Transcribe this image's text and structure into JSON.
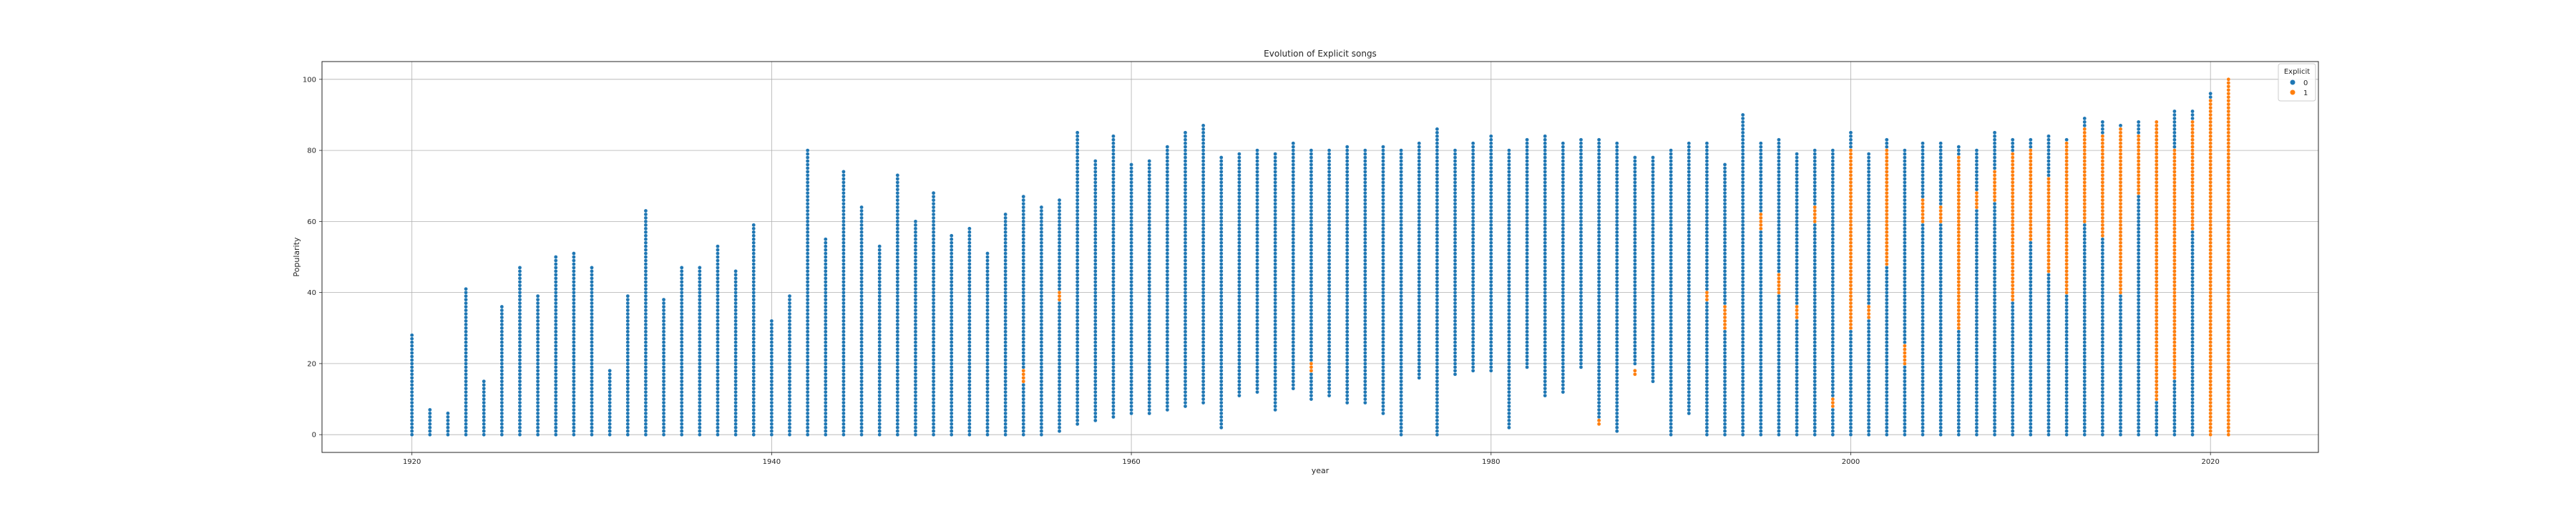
{
  "chart_data": {
    "type": "scatter",
    "title": "Evolution of Explicit songs",
    "xlabel": "year",
    "ylabel": "Popularity",
    "xlim": [
      1915,
      2026
    ],
    "ylim": [
      -5,
      105
    ],
    "xticks": [
      1920,
      1940,
      1960,
      1980,
      2000,
      2020
    ],
    "yticks": [
      0,
      20,
      40,
      60,
      80,
      100
    ],
    "grid": true,
    "legend": {
      "title": "Explicit",
      "placement": "top-right",
      "entries": [
        "0",
        "1"
      ]
    },
    "colors": {
      "0": "#1f77b4",
      "1": "#ff7f0e"
    },
    "marker": "filled circle",
    "note": "Per year, one dot per popularity value observed (values 0-100).",
    "series": [
      {
        "name": "0",
        "year_ranges": [
          [
            1920,
            0,
            28
          ],
          [
            1921,
            0,
            7
          ],
          [
            1922,
            0,
            6
          ],
          [
            1923,
            0,
            41
          ],
          [
            1924,
            0,
            15
          ],
          [
            1925,
            0,
            36
          ],
          [
            1926,
            0,
            47
          ],
          [
            1927,
            0,
            39
          ],
          [
            1928,
            0,
            50
          ],
          [
            1929,
            0,
            51
          ],
          [
            1930,
            0,
            47
          ],
          [
            1931,
            0,
            18
          ],
          [
            1932,
            0,
            39
          ],
          [
            1933,
            0,
            63
          ],
          [
            1934,
            0,
            38
          ],
          [
            1935,
            0,
            47
          ],
          [
            1936,
            0,
            47
          ],
          [
            1937,
            0,
            53
          ],
          [
            1938,
            0,
            46
          ],
          [
            1939,
            0,
            59
          ],
          [
            1940,
            0,
            32
          ],
          [
            1941,
            0,
            39
          ],
          [
            1942,
            0,
            80
          ],
          [
            1943,
            0,
            55
          ],
          [
            1944,
            0,
            74
          ],
          [
            1945,
            0,
            64
          ],
          [
            1946,
            0,
            53
          ],
          [
            1947,
            0,
            73
          ],
          [
            1948,
            0,
            60
          ],
          [
            1949,
            0,
            68
          ],
          [
            1950,
            0,
            56
          ],
          [
            1951,
            0,
            58
          ],
          [
            1952,
            0,
            51
          ],
          [
            1953,
            0,
            62
          ],
          [
            1954,
            0,
            67
          ],
          [
            1955,
            0,
            64
          ],
          [
            1956,
            1,
            66
          ],
          [
            1957,
            3,
            85
          ],
          [
            1958,
            4,
            77
          ],
          [
            1959,
            5,
            84
          ],
          [
            1960,
            6,
            76
          ],
          [
            1961,
            6,
            77
          ],
          [
            1962,
            7,
            81
          ],
          [
            1963,
            8,
            85
          ],
          [
            1964,
            9,
            87
          ],
          [
            1965,
            2,
            78
          ],
          [
            1966,
            11,
            79
          ],
          [
            1967,
            12,
            80
          ],
          [
            1968,
            7,
            79
          ],
          [
            1969,
            13,
            82
          ],
          [
            1970,
            10,
            80
          ],
          [
            1971,
            11,
            80
          ],
          [
            1972,
            9,
            81
          ],
          [
            1973,
            9,
            80
          ],
          [
            1974,
            6,
            81
          ],
          [
            1975,
            0,
            80
          ],
          [
            1976,
            16,
            82
          ],
          [
            1977,
            0,
            86
          ],
          [
            1978,
            17,
            80
          ],
          [
            1979,
            18,
            82
          ],
          [
            1980,
            18,
            84
          ],
          [
            1981,
            2,
            80
          ],
          [
            1982,
            19,
            83
          ],
          [
            1983,
            11,
            84
          ],
          [
            1984,
            12,
            82
          ],
          [
            1985,
            19,
            83
          ],
          [
            1986,
            4,
            83
          ],
          [
            1987,
            1,
            82
          ],
          [
            1988,
            20,
            78
          ],
          [
            1989,
            15,
            78
          ],
          [
            1990,
            0,
            80
          ],
          [
            1991,
            6,
            82
          ],
          [
            1992,
            0,
            82
          ],
          [
            1993,
            0,
            76
          ],
          [
            1994,
            0,
            90
          ],
          [
            1995,
            0,
            82
          ],
          [
            1996,
            0,
            83
          ],
          [
            1997,
            0,
            79
          ],
          [
            1998,
            0,
            80
          ],
          [
            1999,
            0,
            80
          ],
          [
            2000,
            0,
            85
          ],
          [
            2001,
            0,
            79
          ],
          [
            2002,
            0,
            83
          ],
          [
            2003,
            0,
            80
          ],
          [
            2004,
            0,
            82
          ],
          [
            2005,
            0,
            82
          ],
          [
            2006,
            0,
            81
          ],
          [
            2007,
            0,
            80
          ],
          [
            2008,
            0,
            85
          ],
          [
            2009,
            0,
            83
          ],
          [
            2010,
            0,
            83
          ],
          [
            2011,
            0,
            84
          ],
          [
            2012,
            0,
            83
          ],
          [
            2013,
            0,
            89
          ],
          [
            2014,
            0,
            88
          ],
          [
            2015,
            0,
            87
          ],
          [
            2016,
            0,
            88
          ],
          [
            2017,
            0,
            86
          ],
          [
            2018,
            0,
            91
          ],
          [
            2019,
            0,
            91
          ],
          [
            2020,
            0,
            96
          ],
          [
            2021,
            0,
            92
          ]
        ]
      },
      {
        "name": "1",
        "year_ranges": [
          [
            1954,
            15,
            18
          ],
          [
            1956,
            38,
            40
          ],
          [
            1970,
            18,
            20
          ],
          [
            1986,
            3,
            4
          ],
          [
            1988,
            17,
            18
          ],
          [
            1992,
            38,
            40
          ],
          [
            1993,
            30,
            36
          ],
          [
            1995,
            58,
            62
          ],
          [
            1996,
            40,
            45
          ],
          [
            1997,
            33,
            36
          ],
          [
            1998,
            60,
            64
          ],
          [
            1999,
            8,
            10
          ],
          [
            2000,
            30,
            80
          ],
          [
            2001,
            33,
            36
          ],
          [
            2002,
            48,
            80
          ],
          [
            2003,
            20,
            25
          ],
          [
            2004,
            60,
            66
          ],
          [
            2005,
            60,
            64
          ],
          [
            2006,
            30,
            78
          ],
          [
            2007,
            64,
            68
          ],
          [
            2008,
            66,
            74
          ],
          [
            2009,
            38,
            79
          ],
          [
            2010,
            55,
            80
          ],
          [
            2011,
            46,
            72
          ],
          [
            2012,
            40,
            82
          ],
          [
            2013,
            60,
            86
          ],
          [
            2014,
            56,
            84
          ],
          [
            2015,
            40,
            86
          ],
          [
            2016,
            68,
            84
          ],
          [
            2017,
            10,
            88
          ],
          [
            2018,
            16,
            80
          ],
          [
            2019,
            58,
            88
          ],
          [
            2020,
            0,
            94
          ],
          [
            2021,
            0,
            100
          ]
        ]
      }
    ]
  }
}
